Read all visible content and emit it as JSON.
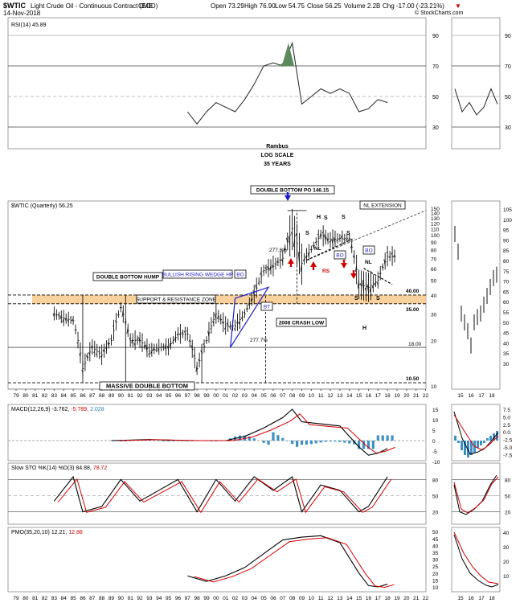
{
  "header": {
    "symbol": "$WTIC",
    "description": "Light Crude Oil - Continuous Contract (EOD)",
    "exchange": "CME",
    "date": "14-Nov-2018",
    "ohlc": {
      "open": "Open 73.29",
      "high": "High 76.90",
      "low": "Low 54.75",
      "close": "Close 56.25",
      "volume": "Volume 2.2B",
      "change": "Chg -17.00 (-23.21%)"
    },
    "watermark": "© StockCharts.com"
  },
  "panels": {
    "rsi": {
      "label": "RSI(14) 45.89",
      "axis_ticks": [
        "90",
        "70",
        "50",
        "30"
      ],
      "annotations": [
        "Rambus",
        "LOG SCALE",
        "35 YEARS"
      ]
    },
    "price": {
      "label": "$WTIC (Quarterly) 56.25",
      "axis_ticks": [
        "150",
        "140",
        "130",
        "120",
        "110",
        "100",
        "90",
        "80",
        "70",
        "60",
        "50",
        "40",
        "30",
        "20",
        "10"
      ],
      "inset_axis_ticks": [
        "105",
        "100",
        "95",
        "90",
        "85",
        "80",
        "75",
        "70",
        "65",
        "60",
        "55",
        "50",
        "45",
        "40",
        "35",
        "30"
      ]
    },
    "macd": {
      "label_prefix": "MACD(12,26,9)",
      "v1": "-3.762",
      "v2": "-5.789",
      "v3": "2.028",
      "axis_ticks": [
        "15",
        "10",
        "5",
        "0",
        "-5",
        "-10"
      ],
      "inset_axis_ticks": [
        "7.5",
        "5.0",
        "2.5",
        "0.0",
        "-2.5",
        "-5.0",
        "-7.5"
      ]
    },
    "sto": {
      "label_prefix": "Slow STO %K(14) %D(3)",
      "k": "84.88",
      "d": "78.72",
      "axis_ticks": [
        "80",
        "50",
        "20"
      ]
    },
    "pmo": {
      "label_prefix": "PMO(35,20,10)",
      "v1": "12.21",
      "v2": "12.88",
      "axis_ticks": [
        "50",
        "45",
        "40",
        "35",
        "30",
        "25",
        "20",
        "15",
        "10"
      ],
      "inset_axis_ticks": [
        "40",
        "30",
        "20",
        "10"
      ]
    }
  },
  "x_axis": {
    "years": [
      "79",
      "80",
      "81",
      "82",
      "83",
      "84",
      "85",
      "86",
      "87",
      "88",
      "89",
      "90",
      "91",
      "92",
      "93",
      "94",
      "95",
      "96",
      "97",
      "98",
      "99",
      "00",
      "01",
      "02",
      "03",
      "04",
      "05",
      "06",
      "07",
      "08",
      "09",
      "10",
      "11",
      "12",
      "13",
      "14",
      "15",
      "16",
      "17",
      "18",
      "19",
      "20",
      "21",
      "22"
    ],
    "inset_years": [
      "15",
      "16",
      "17",
      "18"
    ]
  },
  "annotations": {
    "double_bottom_po": "DOUBLE BOTTOM PO 146.15",
    "nl_extension": "NL EXTENSION",
    "double_bottom_hump": "DOUBLE BOTTOM HUMP",
    "bullish_rising_wedge": "BULLISH RISING WEDGE HP",
    "support_resistance": "SUPPORT & RESISTANCE ZONE",
    "crash_low": "2008 CRASH LOW",
    "massive_double_bottom": "MASSIVE DOUBLE BOTTOM",
    "pct_up": "277.6%",
    "pct_down": "277.7%",
    "bo1": "BO",
    "bo2": "BO",
    "bo3": "BO",
    "bt": "BT",
    "rs": "RS",
    "nl1": "NL",
    "nl2": "NL",
    "level_40": "40.00",
    "level_35": "35.00",
    "level_18": "18.00",
    "level_1050": "10.50",
    "s_left": "S",
    "h_top": "H",
    "s_top1": "S",
    "s_top2": "S",
    "s_right": "S",
    "s_low1": "S",
    "s_low2": "S",
    "h_low": "H"
  },
  "chart_data": {
    "type": "line",
    "title": "$WTIC Light Crude Oil - Continuous Contract (EOD) CME",
    "scale": "log",
    "x_range": [
      1979,
      2022
    ],
    "price_series": {
      "name": "$WTIC (Quarterly)",
      "x": [
        1983,
        1984,
        1985,
        1986,
        1987,
        1988,
        1989,
        1990,
        1991,
        1992,
        1993,
        1994,
        1995,
        1996,
        1997,
        1998,
        1999,
        2000,
        2001,
        2002,
        2003,
        2004,
        2005,
        2006,
        2007,
        2008,
        2009,
        2010,
        2011,
        2012,
        2013,
        2014,
        2015,
        2016,
        2017,
        2018
      ],
      "y": [
        30,
        28,
        27,
        13,
        18,
        16,
        20,
        33,
        20,
        20,
        17,
        18,
        18,
        22,
        22,
        13,
        20,
        30,
        25,
        25,
        30,
        40,
        58,
        62,
        70,
        110,
        65,
        80,
        100,
        92,
        95,
        95,
        47,
        45,
        50,
        72
      ]
    },
    "rsi_series": {
      "name": "RSI(14)",
      "x": [
        1997,
        1998,
        1999,
        2000,
        2001,
        2002,
        2003,
        2004,
        2005,
        2006,
        2007,
        2008,
        2009,
        2010,
        2011,
        2012,
        2013,
        2014,
        2015,
        2016,
        2017,
        2018
      ],
      "y": [
        40,
        32,
        40,
        46,
        43,
        40,
        48,
        58,
        70,
        72,
        70,
        85,
        45,
        50,
        55,
        52,
        55,
        52,
        40,
        42,
        48,
        46
      ]
    },
    "macd_series": {
      "name": "MACD(12,26,9)",
      "x": [
        1989,
        1993,
        1997,
        2001,
        2003,
        2005,
        2007,
        2008,
        2009,
        2011,
        2013,
        2015,
        2016,
        2017,
        2018
      ],
      "y": [
        0,
        0.5,
        0,
        0,
        2,
        6,
        11,
        15,
        9,
        8,
        7,
        -3,
        -7,
        -6,
        -3.8
      ]
    },
    "sto_series": {
      "name": "Slow STO %K",
      "x": [
        1983,
        1985,
        1986,
        1988,
        1990,
        1992,
        1994,
        1996,
        1998,
        2000,
        2002,
        2004,
        2006,
        2008,
        2009,
        2011,
        2013,
        2015,
        2016,
        2018
      ],
      "y": [
        40,
        85,
        20,
        30,
        80,
        40,
        60,
        80,
        20,
        80,
        40,
        85,
        60,
        85,
        20,
        70,
        60,
        20,
        30,
        85
      ]
    },
    "pmo_series": {
      "name": "PMO(35,20,10)",
      "x": [
        1997,
        1999,
        2001,
        2003,
        2005,
        2007,
        2009,
        2011,
        2013,
        2015,
        2016,
        2017,
        2018
      ],
      "y": [
        18,
        14,
        18,
        24,
        34,
        44,
        46,
        47,
        42,
        20,
        11,
        10,
        12
      ]
    },
    "levels": [
      40.0,
      35.0,
      18.0,
      10.5
    ],
    "target": 146.15
  }
}
